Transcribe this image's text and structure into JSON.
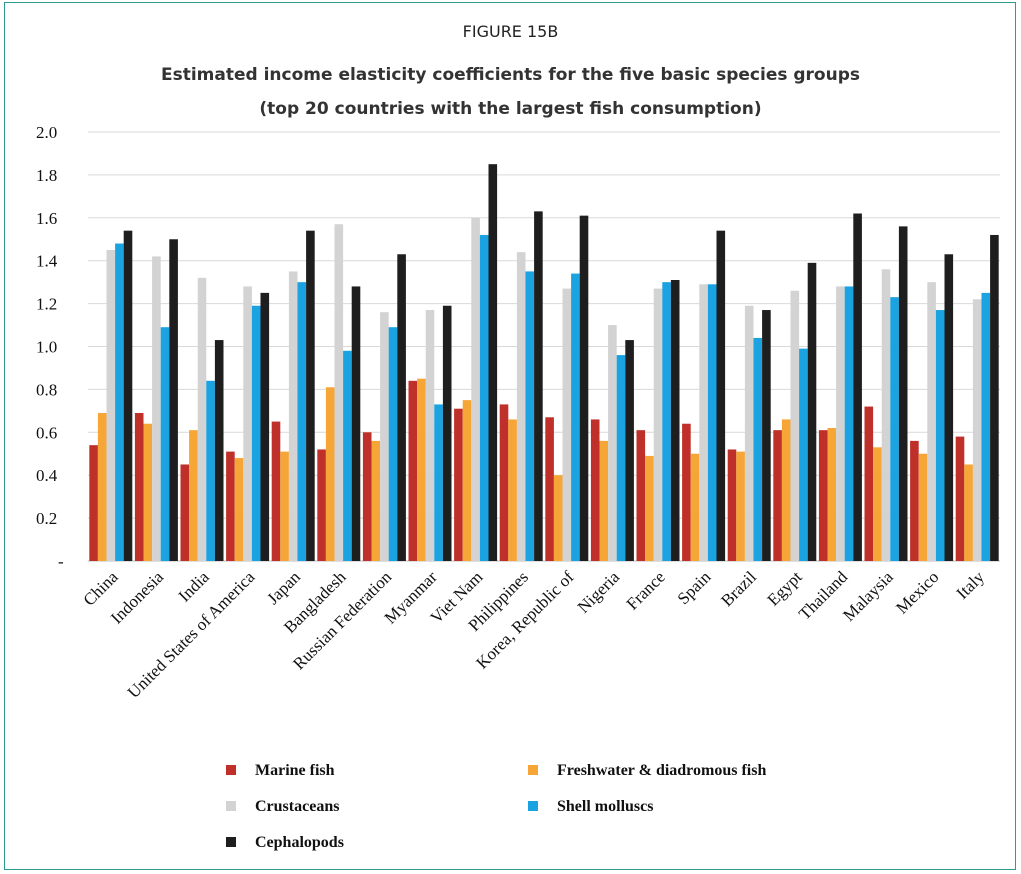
{
  "figure_label": "FIGURE 15B",
  "title_line1": "Estimated income elasticity coefficients for the five basic species groups",
  "title_line2": "(top 20 countries with the largest fish consumption)",
  "chart_data": {
    "type": "bar",
    "categories": [
      "China",
      "Indonesia",
      "India",
      "United States of America",
      "Japan",
      "Bangladesh",
      "Russian Federation",
      "Myanmar",
      "Viet Nam",
      "Philippines",
      "Korea, Republic of",
      "Nigeria",
      "France",
      "Spain",
      "Brazil",
      "Egypt",
      "Thailand",
      "Malaysia",
      "Mexico",
      "Italy"
    ],
    "series": [
      {
        "name": "Marine fish",
        "color": "#c0302a",
        "values": [
          0.54,
          0.69,
          0.45,
          0.51,
          0.65,
          0.52,
          0.6,
          0.84,
          0.71,
          0.73,
          0.67,
          0.66,
          0.61,
          0.64,
          0.52,
          0.61,
          0.61,
          0.72,
          0.56,
          0.58
        ]
      },
      {
        "name": "Freshwater & diadromous fish",
        "color": "#f6a637",
        "values": [
          0.69,
          0.64,
          0.61,
          0.48,
          0.51,
          0.81,
          0.56,
          0.85,
          0.75,
          0.66,
          0.4,
          0.56,
          0.49,
          0.5,
          0.51,
          0.66,
          0.62,
          0.53,
          0.5,
          0.45
        ]
      },
      {
        "name": "Crustaceans",
        "color": "#d3d3d3",
        "values": [
          1.45,
          1.42,
          1.32,
          1.28,
          1.35,
          1.57,
          1.16,
          1.17,
          1.6,
          1.44,
          1.27,
          1.1,
          1.27,
          1.29,
          1.19,
          1.26,
          1.28,
          1.36,
          1.3,
          1.22
        ]
      },
      {
        "name": "Shell molluscs",
        "color": "#1aa3e0",
        "values": [
          1.48,
          1.09,
          0.84,
          1.19,
          1.3,
          0.98,
          1.09,
          0.73,
          1.52,
          1.35,
          1.34,
          0.96,
          1.3,
          1.29,
          1.04,
          0.99,
          1.28,
          1.23,
          1.17,
          1.25
        ]
      },
      {
        "name": "Cephalopods",
        "color": "#1e1e1e",
        "values": [
          1.54,
          1.5,
          1.03,
          1.25,
          1.54,
          1.28,
          1.43,
          1.19,
          1.85,
          1.63,
          1.61,
          1.03,
          1.31,
          1.54,
          1.17,
          1.39,
          1.62,
          1.56,
          1.43,
          1.52
        ]
      }
    ],
    "yticks": [
      "2.0",
      "1.8",
      "1.6",
      "1.4",
      "1.2",
      "1.0",
      "0.8",
      "0.6",
      "0.4",
      "0.2",
      "-"
    ],
    "ylim": [
      0,
      2.0
    ],
    "grid": true,
    "legend_position": "bottom"
  }
}
